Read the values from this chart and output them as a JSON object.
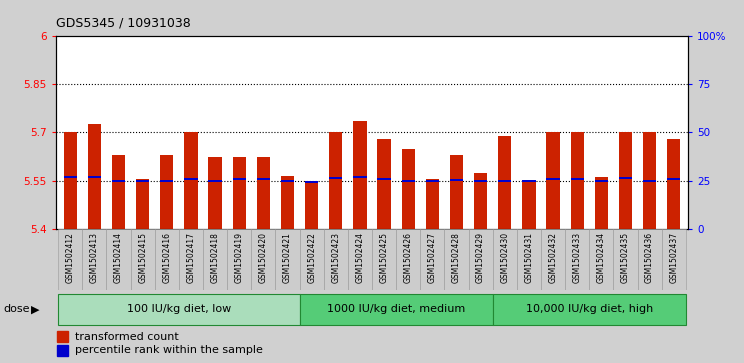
{
  "title": "GDS5345 / 10931038",
  "samples": [
    "GSM1502412",
    "GSM1502413",
    "GSM1502414",
    "GSM1502415",
    "GSM1502416",
    "GSM1502417",
    "GSM1502418",
    "GSM1502419",
    "GSM1502420",
    "GSM1502421",
    "GSM1502422",
    "GSM1502423",
    "GSM1502424",
    "GSM1502425",
    "GSM1502426",
    "GSM1502427",
    "GSM1502428",
    "GSM1502429",
    "GSM1502430",
    "GSM1502431",
    "GSM1502432",
    "GSM1502433",
    "GSM1502434",
    "GSM1502435",
    "GSM1502436",
    "GSM1502437"
  ],
  "bar_tops": [
    5.7,
    5.725,
    5.63,
    5.555,
    5.63,
    5.7,
    5.625,
    5.625,
    5.625,
    5.565,
    5.545,
    5.7,
    5.735,
    5.68,
    5.65,
    5.555,
    5.63,
    5.575,
    5.69,
    5.545,
    5.7,
    5.7,
    5.56,
    5.7,
    5.7,
    5.68
  ],
  "blue_markers": [
    5.56,
    5.56,
    5.55,
    5.55,
    5.55,
    5.556,
    5.55,
    5.556,
    5.556,
    5.55,
    5.545,
    5.558,
    5.56,
    5.556,
    5.55,
    5.55,
    5.552,
    5.55,
    5.548,
    5.548,
    5.556,
    5.556,
    5.55,
    5.558,
    5.55,
    5.556
  ],
  "bar_base": 5.4,
  "ylim_left": [
    5.4,
    6.0
  ],
  "ylim_right": [
    0,
    100
  ],
  "yticks_left": [
    5.4,
    5.55,
    5.7,
    5.85,
    6.0
  ],
  "yticks_right": [
    0,
    25,
    50,
    75,
    100
  ],
  "ytick_labels_left": [
    "5.4",
    "5.55",
    "5.7",
    "5.85",
    "6"
  ],
  "ytick_labels_right": [
    "0",
    "25",
    "50",
    "75",
    "100%"
  ],
  "hlines": [
    5.55,
    5.7,
    5.85
  ],
  "bar_color": "#cc2200",
  "blue_color": "#0000cc",
  "groups": [
    {
      "label": "100 IU/kg diet, low",
      "start": 0,
      "end": 10
    },
    {
      "label": "1000 IU/kg diet, medium",
      "start": 10,
      "end": 18
    },
    {
      "label": "10,000 IU/kg diet, high",
      "start": 18,
      "end": 26
    }
  ],
  "group_colors": [
    "#aaeebb",
    "#55cc77",
    "#55cc77"
  ],
  "group_border_color": "#228833",
  "bg_color": "#d0d0d0",
  "plot_bg": "#ffffff",
  "tick_bg_color": "#cccccc",
  "dose_label": "dose",
  "legend_items": [
    {
      "label": "transformed count",
      "color": "#cc2200"
    },
    {
      "label": "percentile rank within the sample",
      "color": "#0000cc"
    }
  ]
}
